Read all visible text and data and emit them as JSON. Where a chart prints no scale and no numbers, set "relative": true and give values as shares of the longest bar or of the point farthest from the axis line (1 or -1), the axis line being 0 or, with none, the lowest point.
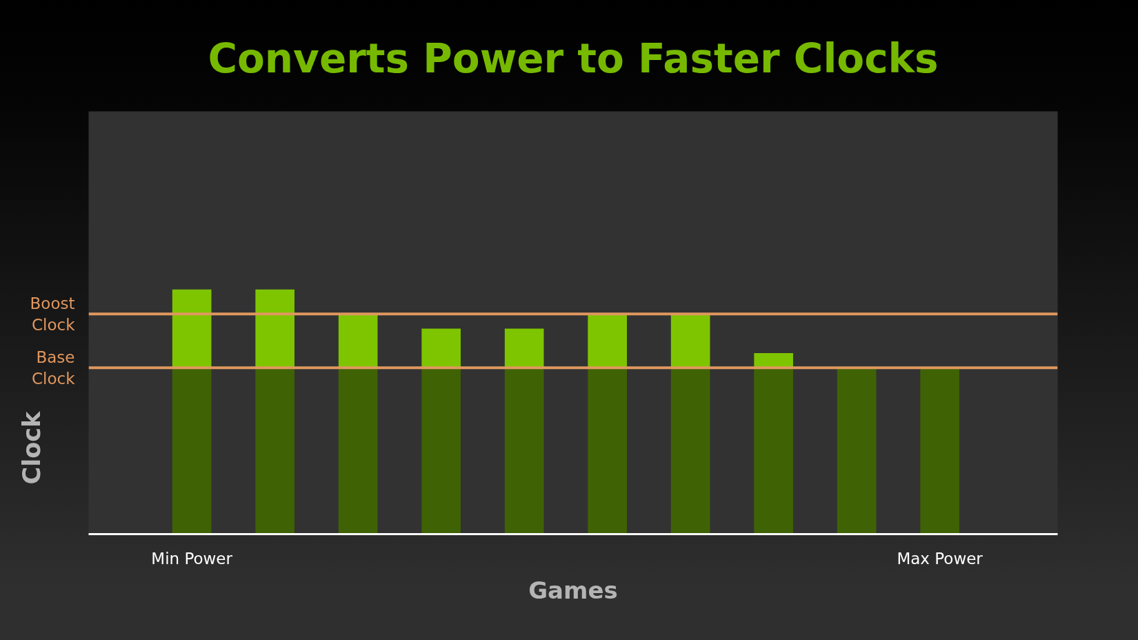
{
  "chart_data": {
    "type": "bar",
    "title": "Converts Power to Faster Clocks",
    "xlabel": "Games",
    "ylabel": "Clock",
    "categories": [
      "Min Power",
      null,
      null,
      null,
      null,
      null,
      null,
      null,
      null,
      "Max Power"
    ],
    "stacked": true,
    "relative": true,
    "series": [
      {
        "color": "#3f6304",
        "values": [
          0.68,
          0.68,
          0.68,
          0.68,
          0.68,
          0.68,
          0.68,
          0.68,
          0.68,
          0.68
        ]
      },
      {
        "color": "#7ec500",
        "values": [
          0.32,
          0.32,
          0.22,
          0.16,
          0.16,
          0.22,
          0.22,
          0.06,
          null,
          null
        ]
      }
    ],
    "ref_lines": [
      {
        "axis": "y",
        "value": 0.9,
        "label": "Boost Clock",
        "color": "#e0975e"
      },
      {
        "axis": "y",
        "value": 0.68,
        "label": "Base Clock",
        "color": "#e0975e"
      }
    ]
  }
}
